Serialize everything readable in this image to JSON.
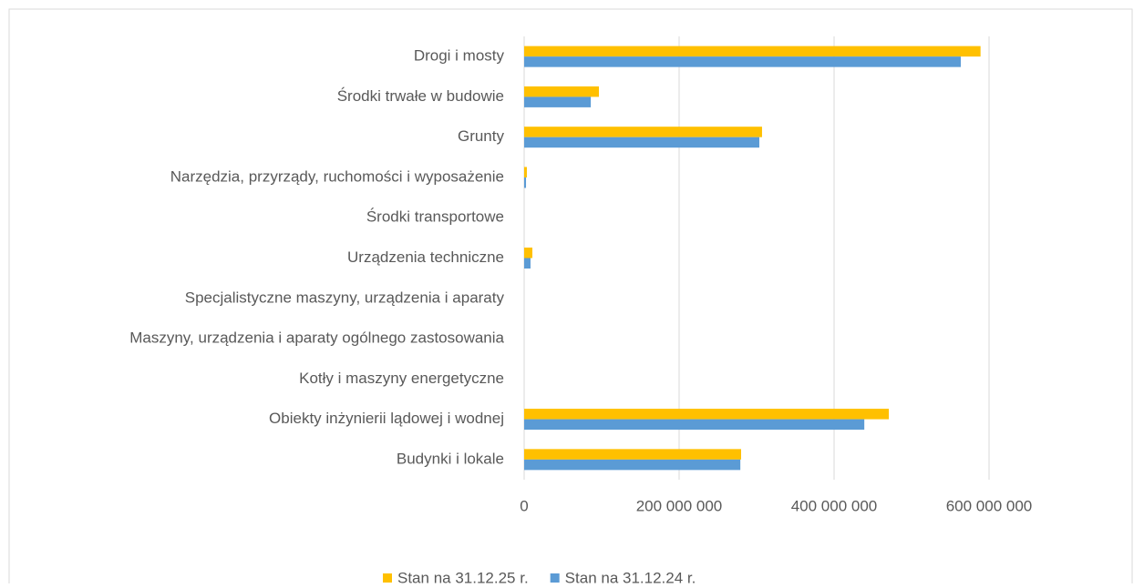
{
  "chart_data": {
    "type": "hbar",
    "categories": [
      "Drogi i mosty",
      "Środki trwałe w budowie",
      "Grunty",
      "Narzędzia, przyrządy, ruchomości i wyposażenie",
      "Środki transportowe",
      "Urządzenia techniczne",
      "Specjalistyczne maszyny, urządzenia i aparaty",
      "Maszyny, urządzenia i aparaty ogólnego zastosowania",
      "Kotły i maszyny energetyczne",
      "Obiekty inżynierii lądowej i wodnej",
      "Budynki i lokale"
    ],
    "series": [
      {
        "name": "Stan na 31.12.25 r.",
        "color": "#ffc000",
        "values": [
          589000000,
          96500000,
          307000000,
          3500000,
          0,
          10600000,
          0,
          0,
          0,
          470600000,
          280000000
        ]
      },
      {
        "name": "Stan na 31.12.24 r.",
        "color": "#5b9bd5",
        "values": [
          563500000,
          86000000,
          303500000,
          2400000,
          0,
          8200000,
          0,
          0,
          0,
          439000000,
          279000000
        ]
      }
    ],
    "xlim": [
      0,
      600000000
    ],
    "xticks": [
      0,
      {
        "value": 200000000,
        "label": "200 000 000"
      },
      {
        "value": 400000000,
        "label": "400 000 000"
      },
      {
        "value": 600000000,
        "label": "600 000 000"
      }
    ],
    "grid": true,
    "legend": "bottom"
  }
}
